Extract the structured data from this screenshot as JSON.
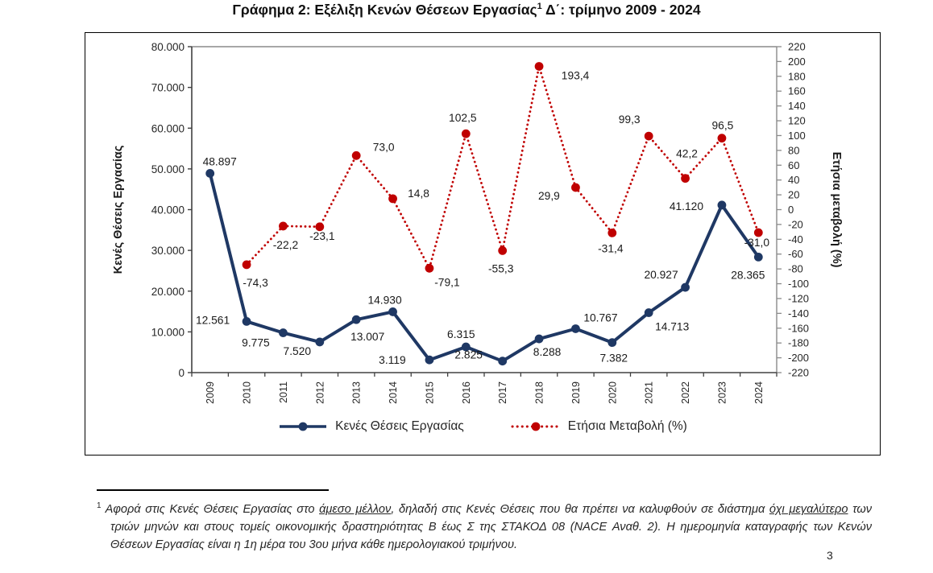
{
  "title": {
    "prefix": "Γράφημα 2: Εξέλιξη Κενών Θέσεων Εργασίας",
    "sup": "1",
    "suffix": " Δ΄: τρίμηνο 2009 - 2024"
  },
  "chart_data": {
    "type": "line",
    "title": "Γράφημα 2: Εξέλιξη Κενών Θέσεων Εργασίας Δ΄: τρίμηνο 2009 - 2024",
    "categories": [
      "2009",
      "2010",
      "2011",
      "2012",
      "2013",
      "2014",
      "2015",
      "2016",
      "2017",
      "2018",
      "2019",
      "2020",
      "2021",
      "2022",
      "2023",
      "2024"
    ],
    "series": [
      {
        "name": "Κενές Θέσεις Εργασίας",
        "axis": "left",
        "style": "solid",
        "color": "#1F3864",
        "values": [
          48897,
          12561,
          9775,
          7520,
          13007,
          14930,
          3119,
          6315,
          2825,
          8288,
          10767,
          7382,
          14713,
          20927,
          41120,
          28365
        ],
        "labels": [
          "48.897",
          "12.561",
          "9.775",
          "7.520",
          "13.007",
          "14.930",
          "3.119",
          "6.315",
          "2.825",
          "8.288",
          "10.767",
          "7.382",
          "14.713",
          "20.927",
          "41.120",
          "28.365"
        ]
      },
      {
        "name": "Ετήσια Μεταβολή (%)",
        "axis": "right",
        "style": "dotted",
        "color": "#C00000",
        "values": [
          null,
          -74.3,
          -22.2,
          -23.1,
          73.0,
          14.8,
          -79.1,
          102.5,
          -55.3,
          193.4,
          29.9,
          -31.4,
          99.3,
          42.2,
          96.5,
          -31.0
        ],
        "labels": [
          null,
          "-74,3",
          "-22,2",
          "-23,1",
          "73,0",
          "14,8",
          "-79,1",
          "102,5",
          "-55,3",
          "193,4",
          "29,9",
          "-31,4",
          "99,3",
          "42,2",
          "96,5",
          "-31,0"
        ]
      }
    ],
    "left_axis": {
      "label": "Κενές Θέσεις Εργασίας",
      "range": [
        0,
        80000
      ],
      "tick_labels": [
        "80.000",
        "70.000",
        "60.000",
        "50.000",
        "40.000",
        "30.000",
        "20.000",
        "10.000",
        "0"
      ]
    },
    "right_axis": {
      "label": "Ετήσια μεταβολή (%)",
      "range": [
        -220,
        220
      ],
      "tick_labels": [
        "220",
        "200",
        "180",
        "160",
        "140",
        "120",
        "100",
        "80",
        "60",
        "40",
        "20",
        "0",
        "-20",
        "-40",
        "-60",
        "-80",
        "-100",
        "-120",
        "-140",
        "-160",
        "-180",
        "-200",
        "-220"
      ]
    },
    "grid": false,
    "legend_position": "bottom"
  },
  "legend": {
    "items": [
      {
        "label": "Κενές Θέσεις Εργασίας",
        "color": "#1F3864",
        "style": "solid"
      },
      {
        "label": "Ετήσια Μεταβολή (%)",
        "color": "#C00000",
        "style": "dotted"
      }
    ]
  },
  "footnote": {
    "sup": "1",
    "seg1": "Αφορά στις Κενές Θέσεις Εργασίας στο ",
    "seg2": "άμεσο μέλλον",
    "seg3": ", δηλαδή στις Κενές Θέσεις που θα πρέπει να καλυφθούν σε διάστημα ",
    "seg4": "όχι μεγαλύτερο",
    "seg5": " των τριών μηνών και στους τομείς οικονομικής δραστηριότητας Β έως Σ της ΣΤΑΚΟΔ 08 (NACE Αναθ. 2). Η ημερομηνία καταγραφής των Κενών Θέσεων Εργασίας είναι η 1η μέρα του 3ου μήνα κάθε ημερολογιακού τριμήνου."
  },
  "page_number": "3",
  "colors": {
    "vacancies_line": "#1F3864",
    "change_line": "#C00000",
    "axis_dark": "#404040",
    "axis_gray": "#8a8a8a",
    "text": "#1a1a1a"
  }
}
